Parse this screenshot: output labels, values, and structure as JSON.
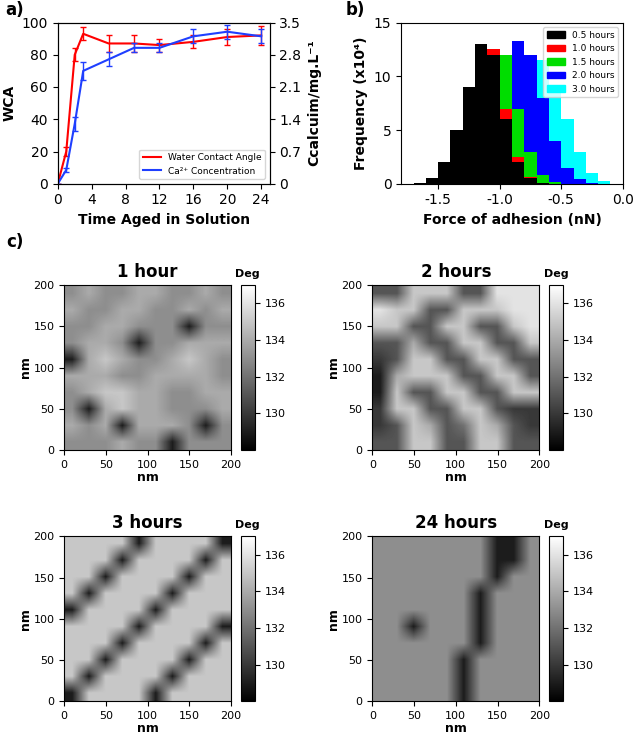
{
  "chart_data": [
    {
      "type": "line",
      "panel_label": "a)",
      "x_label": "Time Aged in Solution",
      "y_label": "WCA",
      "y2_label": "Ccalcuim/mg.L⁻¹",
      "x": [
        0,
        1,
        2,
        3,
        6,
        9,
        12,
        16,
        20,
        24
      ],
      "xlim": [
        0,
        25
      ],
      "xticks": [
        0,
        4,
        8,
        12,
        16,
        20,
        24
      ],
      "ylim": [
        0,
        100
      ],
      "yticks": [
        0,
        20,
        40,
        60,
        80,
        100
      ],
      "y2lim": [
        0,
        3.5
      ],
      "y2ticks": [
        0,
        0.7,
        1.4,
        2.1,
        2.8,
        3.5
      ],
      "legend": "lower right",
      "series": [
        {
          "name": "Water Contact Angle",
          "color": "#ff0000",
          "axis": "y",
          "values": [
            0,
            20,
            80,
            93,
            87,
            87,
            86,
            88,
            91,
            92
          ],
          "errors": [
            0,
            3,
            4,
            4,
            5,
            5,
            4,
            4,
            5,
            6
          ]
        },
        {
          "name": "Ca²⁺ Concentration",
          "color": "#1f3fff",
          "axis": "y2",
          "values": [
            0,
            0.3,
            1.3,
            2.45,
            2.7,
            2.95,
            2.95,
            3.2,
            3.3,
            3.2
          ],
          "errors": [
            0,
            0.05,
            0.15,
            0.2,
            0.15,
            0.1,
            0.1,
            0.15,
            0.15,
            0.15
          ]
        }
      ]
    },
    {
      "type": "histogram",
      "panel_label": "b)",
      "x_label": "Force of adhesion (nN)",
      "y_label": "Frequency (x10⁴)",
      "bins": [
        -1.8,
        -1.7,
        -1.6,
        -1.5,
        -1.4,
        -1.3,
        -1.2,
        -1.1,
        -1.0,
        -0.9,
        -0.8,
        -0.7,
        -0.6,
        -0.5,
        -0.4,
        -0.3,
        -0.2,
        -0.1,
        0.0
      ],
      "xlim": [
        -1.8,
        0.0
      ],
      "xticks": [
        -1.5,
        -1.0,
        -0.5,
        0.0
      ],
      "ylim": [
        0,
        15
      ],
      "yticks": [
        0,
        5,
        10,
        15
      ],
      "legend": "upper right",
      "series": [
        {
          "name": "0.5 hours",
          "color": "#000000",
          "values": [
            0,
            0.1,
            0.5,
            2,
            5,
            9,
            13,
            12,
            6,
            2,
            0.5,
            0.1,
            0,
            0,
            0,
            0,
            0,
            0
          ]
        },
        {
          "name": "1.0 hours",
          "color": "#ff0000",
          "values": [
            0,
            0.1,
            0.4,
            1.8,
            4.5,
            8.5,
            12,
            12.5,
            7,
            2.5,
            0.6,
            0.1,
            0,
            0,
            0,
            0,
            0,
            0
          ]
        },
        {
          "name": "1.5 hours",
          "color": "#00dd00",
          "values": [
            0,
            0,
            0.3,
            1.5,
            3.5,
            7,
            10,
            12,
            12,
            7,
            3,
            0.8,
            0.2,
            0,
            0,
            0,
            0,
            0
          ]
        },
        {
          "name": "2.0 hours",
          "color": "#0000ff",
          "values": [
            0,
            0,
            0,
            0.2,
            0.8,
            2,
            4,
            7,
            11,
            13.3,
            12,
            8,
            4,
            1.5,
            0.4,
            0.1,
            0,
            0
          ]
        },
        {
          "name": "3.0 hours",
          "color": "#00ffff",
          "values": [
            0,
            0,
            0,
            0,
            0.2,
            0.5,
            1.5,
            3,
            6,
            9,
            11,
            11.5,
            9,
            6,
            3,
            1,
            0.3,
            0
          ]
        }
      ]
    },
    {
      "type": "heatmap",
      "panel_label": "c)",
      "title": "1 hour",
      "x_label": "nm",
      "y_label": "nm",
      "xlim": [
        0,
        200
      ],
      "ylim": [
        0,
        200
      ],
      "xticks": [
        0,
        50,
        100,
        150,
        200
      ],
      "yticks": [
        0,
        50,
        100,
        150,
        200
      ],
      "colorbar": {
        "label": "Deg",
        "range": [
          128,
          137
        ],
        "ticks": [
          130,
          132,
          134,
          136
        ]
      },
      "cells": [
        [
          133,
          133,
          133,
          134,
          133,
          133,
          129,
          133,
          133,
          133
        ],
        [
          134,
          133,
          134,
          129,
          134,
          134,
          134,
          133,
          129,
          133
        ],
        [
          133,
          129,
          134,
          135,
          134,
          134,
          133,
          133,
          133,
          134
        ],
        [
          133,
          134,
          135,
          135,
          134,
          134,
          133,
          133,
          134,
          134
        ],
        [
          134,
          134,
          134,
          133,
          133,
          134,
          134,
          134,
          134,
          133
        ],
        [
          129,
          134,
          135,
          134,
          133,
          133,
          134,
          135,
          134,
          133
        ],
        [
          133,
          134,
          134,
          133,
          129,
          133,
          133,
          134,
          134,
          134
        ],
        [
          133,
          133,
          134,
          134,
          133,
          133,
          133,
          129,
          133,
          133
        ],
        [
          134,
          133,
          133,
          134,
          134,
          133,
          133,
          134,
          133,
          134
        ],
        [
          133,
          134,
          133,
          133,
          134,
          134,
          133,
          133,
          134,
          133
        ]
      ]
    },
    {
      "type": "heatmap",
      "title": "2 hours",
      "x_label": "nm",
      "y_label": "nm",
      "xlim": [
        0,
        200
      ],
      "ylim": [
        0,
        200
      ],
      "xticks": [
        0,
        50,
        100,
        150,
        200
      ],
      "yticks": [
        0,
        50,
        100,
        150,
        200
      ],
      "colorbar": {
        "label": "Deg",
        "range": [
          128,
          137
        ],
        "ticks": [
          130,
          132,
          134,
          136
        ]
      },
      "cells": [
        [
          131,
          131,
          135,
          135,
          131,
          131,
          135,
          135,
          131,
          131
        ],
        [
          130,
          131,
          135,
          134,
          131,
          132,
          135,
          134,
          131,
          130
        ],
        [
          130,
          135,
          135,
          131,
          131,
          135,
          135,
          131,
          130,
          130
        ],
        [
          129,
          135,
          131,
          131,
          135,
          135,
          131,
          131,
          135,
          135
        ],
        [
          129,
          134,
          135,
          135,
          135,
          131,
          131,
          135,
          135,
          131
        ],
        [
          130,
          131,
          135,
          135,
          131,
          131,
          135,
          135,
          131,
          131
        ],
        [
          131,
          131,
          134,
          131,
          131,
          135,
          135,
          131,
          131,
          135
        ],
        [
          135,
          135,
          131,
          131,
          135,
          135,
          131,
          131,
          135,
          136
        ],
        [
          136,
          135,
          135,
          131,
          131,
          135,
          135,
          135,
          136,
          136
        ],
        [
          131,
          131,
          135,
          135,
          135,
          131,
          131,
          136,
          136,
          136
        ]
      ]
    },
    {
      "type": "heatmap",
      "title": "3 hours",
      "x_label": "nm",
      "y_label": "nm",
      "xlim": [
        0,
        200
      ],
      "ylim": [
        0,
        200
      ],
      "xticks": [
        0,
        50,
        100,
        150,
        200
      ],
      "yticks": [
        0,
        50,
        100,
        150,
        200
      ],
      "colorbar": {
        "label": "Deg",
        "range": [
          128,
          137
        ],
        "ticks": [
          130,
          132,
          134,
          136
        ]
      },
      "cells": [
        [
          129,
          135,
          135,
          135,
          135,
          129,
          135,
          135,
          135,
          135
        ],
        [
          135,
          129,
          135,
          135,
          135,
          135,
          129,
          135,
          135,
          135
        ],
        [
          135,
          135,
          129,
          135,
          135,
          135,
          135,
          129,
          135,
          135
        ],
        [
          135,
          135,
          135,
          129,
          135,
          135,
          135,
          135,
          129,
          135
        ],
        [
          135,
          135,
          135,
          135,
          129,
          135,
          135,
          135,
          135,
          129
        ],
        [
          129,
          135,
          135,
          135,
          135,
          129,
          135,
          135,
          135,
          135
        ],
        [
          135,
          129,
          135,
          135,
          135,
          135,
          129,
          135,
          135,
          135
        ],
        [
          135,
          135,
          129,
          135,
          135,
          135,
          135,
          129,
          135,
          135
        ],
        [
          135,
          135,
          135,
          129,
          135,
          135,
          135,
          135,
          129,
          135
        ],
        [
          135,
          135,
          135,
          135,
          129,
          135,
          135,
          135,
          135,
          129
        ]
      ]
    },
    {
      "type": "heatmap",
      "title": "24 hours",
      "x_label": "nm",
      "y_label": "nm",
      "xlim": [
        0,
        200
      ],
      "ylim": [
        0,
        200
      ],
      "xticks": [
        0,
        50,
        100,
        150,
        200
      ],
      "yticks": [
        0,
        50,
        100,
        150,
        200
      ],
      "colorbar": {
        "label": "Deg",
        "range": [
          128,
          137
        ],
        "ticks": [
          130,
          132,
          134,
          136
        ]
      },
      "cells": [
        [
          133,
          133,
          133,
          133,
          133,
          129,
          133,
          133,
          133,
          133
        ],
        [
          133,
          133,
          133,
          133,
          133,
          129,
          133,
          133,
          133,
          133
        ],
        [
          133,
          133,
          133,
          133,
          133,
          129,
          133,
          133,
          133,
          133
        ],
        [
          133,
          133,
          133,
          133,
          133,
          133,
          129,
          133,
          133,
          133
        ],
        [
          133,
          133,
          129,
          133,
          133,
          133,
          129,
          133,
          133,
          133
        ],
        [
          133,
          133,
          133,
          133,
          133,
          133,
          129,
          133,
          133,
          133
        ],
        [
          133,
          133,
          133,
          133,
          133,
          133,
          129,
          133,
          133,
          133
        ],
        [
          133,
          133,
          133,
          133,
          133,
          133,
          133,
          129,
          133,
          133
        ],
        [
          133,
          133,
          133,
          133,
          133,
          133,
          133,
          129,
          129,
          133
        ],
        [
          133,
          133,
          133,
          133,
          133,
          133,
          133,
          129,
          129,
          133
        ]
      ]
    }
  ]
}
